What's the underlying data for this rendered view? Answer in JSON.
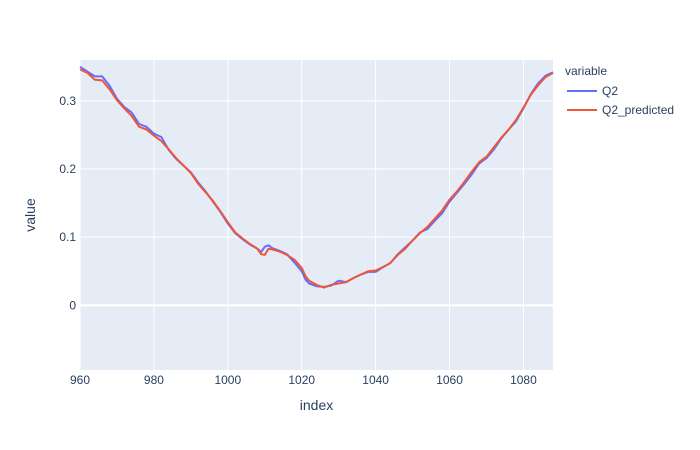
{
  "chart_data": {
    "type": "line",
    "xlabel": "index",
    "ylabel": "value",
    "xlim": [
      960,
      1088
    ],
    "ylim": [
      -0.095,
      0.36
    ],
    "x_ticks": [
      960,
      980,
      1000,
      1020,
      1040,
      1060,
      1080
    ],
    "y_ticks": [
      0,
      0.1,
      0.2,
      0.3
    ],
    "y_tick_labels": [
      "0",
      "0.1",
      "0.2",
      "0.3"
    ],
    "grid": true,
    "legend_title": "variable",
    "legend_position": "top-right",
    "background": "#e5ecf6",
    "series": [
      {
        "name": "Q2",
        "color": "#636efa",
        "x": [
          960,
          962,
          964,
          966,
          968,
          970,
          972,
          974,
          976,
          978,
          980,
          982,
          984,
          986,
          988,
          990,
          992,
          994,
          996,
          998,
          1000,
          1002,
          1004,
          1006,
          1008,
          1009,
          1010,
          1011,
          1012,
          1014,
          1016,
          1018,
          1020,
          1021,
          1022,
          1024,
          1026,
          1028,
          1030,
          1032,
          1034,
          1036,
          1038,
          1040,
          1042,
          1044,
          1046,
          1048,
          1050,
          1052,
          1054,
          1056,
          1058,
          1060,
          1062,
          1064,
          1066,
          1068,
          1070,
          1072,
          1074,
          1076,
          1078,
          1080,
          1082,
          1084,
          1086,
          1088
        ],
        "y": [
          0.35,
          0.343,
          0.336,
          0.336,
          0.322,
          0.303,
          0.291,
          0.283,
          0.266,
          0.262,
          0.252,
          0.247,
          0.228,
          0.215,
          0.205,
          0.195,
          0.18,
          0.167,
          0.152,
          0.137,
          0.12,
          0.106,
          0.097,
          0.089,
          0.083,
          0.078,
          0.086,
          0.088,
          0.084,
          0.08,
          0.075,
          0.063,
          0.05,
          0.038,
          0.032,
          0.028,
          0.027,
          0.029,
          0.036,
          0.034,
          0.04,
          0.045,
          0.049,
          0.049,
          0.056,
          0.062,
          0.075,
          0.085,
          0.095,
          0.107,
          0.112,
          0.124,
          0.135,
          0.152,
          0.165,
          0.178,
          0.192,
          0.208,
          0.216,
          0.229,
          0.245,
          0.258,
          0.27,
          0.289,
          0.31,
          0.326,
          0.337,
          0.342
        ]
      },
      {
        "name": "Q2_predicted",
        "color": "#ef553b",
        "x": [
          960,
          962,
          964,
          966,
          968,
          970,
          972,
          974,
          976,
          978,
          980,
          982,
          984,
          986,
          988,
          990,
          992,
          994,
          996,
          998,
          1000,
          1002,
          1004,
          1006,
          1008,
          1009,
          1010,
          1011,
          1012,
          1014,
          1016,
          1018,
          1020,
          1021,
          1022,
          1024,
          1026,
          1028,
          1030,
          1032,
          1034,
          1036,
          1038,
          1040,
          1042,
          1044,
          1046,
          1048,
          1050,
          1052,
          1054,
          1056,
          1058,
          1060,
          1062,
          1064,
          1066,
          1068,
          1070,
          1072,
          1074,
          1076,
          1078,
          1080,
          1082,
          1084,
          1086,
          1088
        ],
        "y": [
          0.346,
          0.341,
          0.331,
          0.33,
          0.317,
          0.301,
          0.289,
          0.278,
          0.262,
          0.258,
          0.249,
          0.241,
          0.229,
          0.216,
          0.205,
          0.194,
          0.178,
          0.166,
          0.153,
          0.138,
          0.122,
          0.107,
          0.098,
          0.09,
          0.083,
          0.075,
          0.074,
          0.083,
          0.082,
          0.079,
          0.074,
          0.067,
          0.055,
          0.043,
          0.036,
          0.03,
          0.026,
          0.03,
          0.032,
          0.034,
          0.04,
          0.045,
          0.05,
          0.051,
          0.056,
          0.062,
          0.074,
          0.083,
          0.095,
          0.106,
          0.115,
          0.127,
          0.139,
          0.155,
          0.167,
          0.181,
          0.196,
          0.21,
          0.218,
          0.232,
          0.246,
          0.258,
          0.272,
          0.29,
          0.309,
          0.323,
          0.335,
          0.341
        ]
      }
    ]
  }
}
